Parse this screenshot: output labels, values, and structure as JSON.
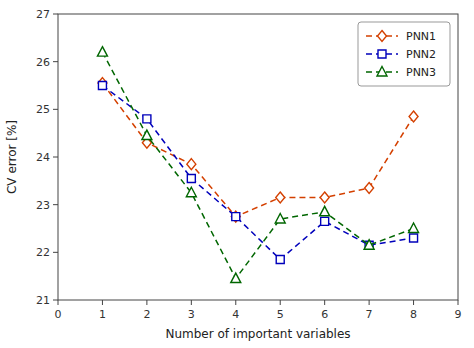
{
  "chart_data": {
    "type": "line",
    "xlabel": "Number of important variables",
    "ylabel": "CV error  [%]",
    "x": [
      1,
      2,
      3,
      4,
      5,
      6,
      7,
      8
    ],
    "series": [
      {
        "name": "PNN1",
        "color": "#d44000",
        "marker": "diamond",
        "line_style": "dashed",
        "values": [
          25.55,
          24.3,
          23.85,
          22.75,
          23.15,
          23.15,
          23.35,
          24.85
        ]
      },
      {
        "name": "PNN2",
        "color": "#0000bb",
        "marker": "square",
        "line_style": "dashed",
        "values": [
          25.5,
          24.8,
          23.55,
          22.75,
          21.85,
          22.65,
          22.15,
          22.3
        ]
      },
      {
        "name": "PNN3",
        "color": "#006600",
        "marker": "triangle",
        "line_style": "dashed",
        "values": [
          26.2,
          24.45,
          23.25,
          21.45,
          22.7,
          22.85,
          22.15,
          22.5
        ]
      }
    ],
    "xlim": [
      0,
      9
    ],
    "ylim": [
      21,
      27
    ],
    "xticks": [
      0,
      1,
      2,
      3,
      4,
      5,
      6,
      7,
      8,
      9
    ],
    "yticks": [
      21,
      22,
      23,
      24,
      25,
      26,
      27
    ],
    "grid": false,
    "legend": "upper right"
  }
}
